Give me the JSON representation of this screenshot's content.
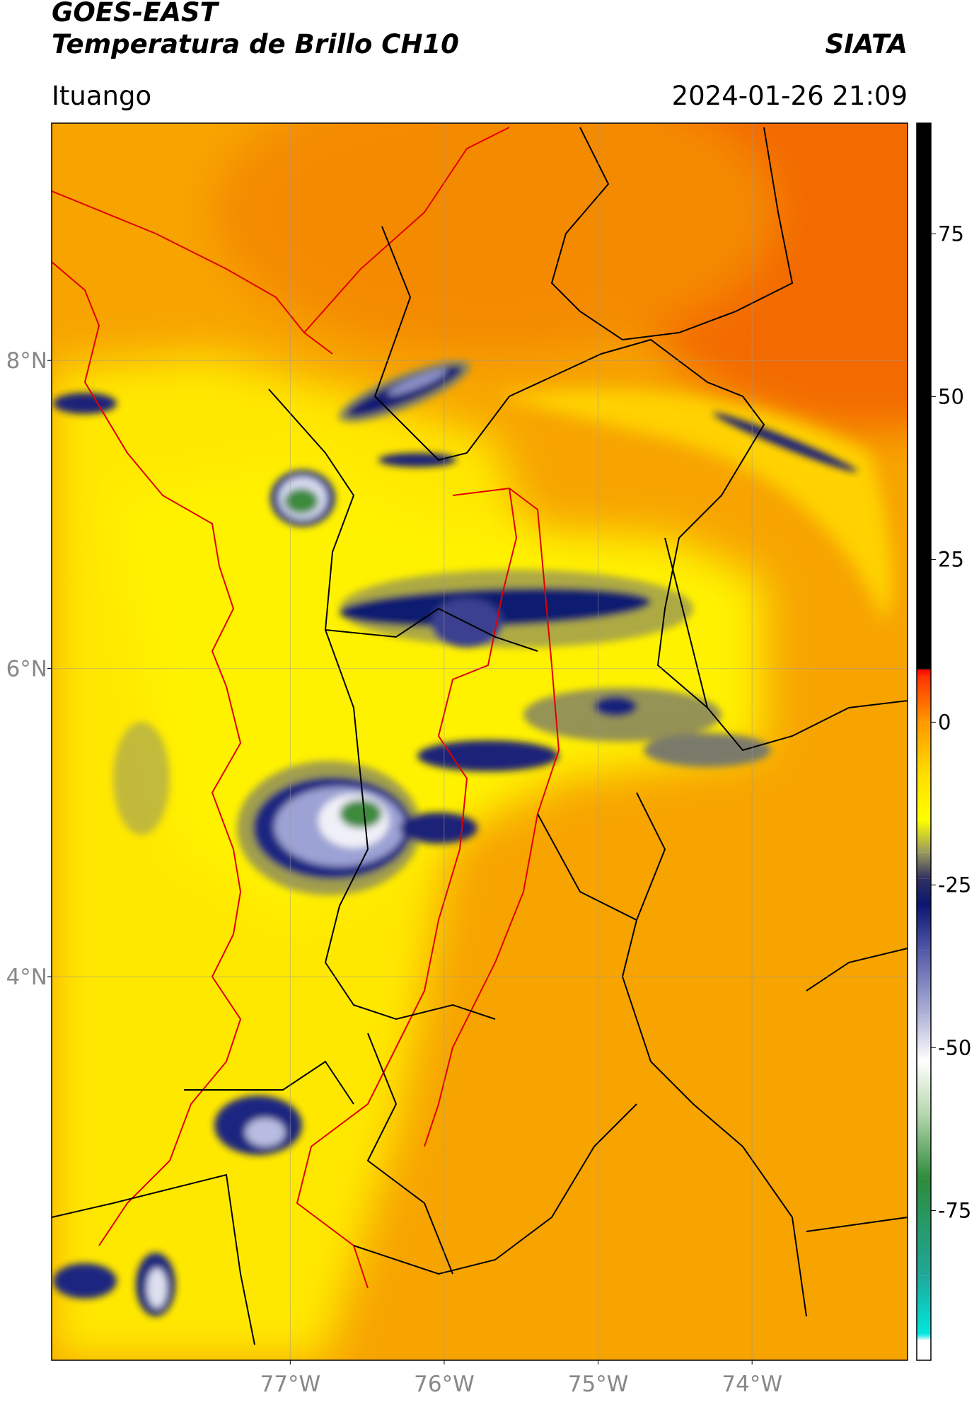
{
  "header": {
    "title": "GOES-EAST",
    "subtitle": "Temperatura de Brillo CH10",
    "credit": "SIATA",
    "region": "Ituango",
    "timestamp": "2024-01-26 21:09"
  },
  "map": {
    "lonlim": [
      -78.55,
      -72.99
    ],
    "latlim": [
      1.51,
      9.54
    ],
    "grid": true,
    "lonticks": [
      {
        "value": -77,
        "label": "77°W"
      },
      {
        "value": -76,
        "label": "76°W"
      },
      {
        "value": -75,
        "label": "75°W"
      },
      {
        "value": -74,
        "label": "74°W"
      }
    ],
    "latticks": [
      {
        "value": 8,
        "label": "8°N"
      },
      {
        "value": 6,
        "label": "6°N"
      },
      {
        "value": 4,
        "label": "4°N"
      }
    ]
  },
  "colorbar": {
    "lim": [
      -98,
      92
    ],
    "ticks": [
      75,
      50,
      25,
      0,
      -25,
      -50,
      -75
    ],
    "colormap": [
      [
        -98,
        "#ffffff"
      ],
      [
        -95,
        "#ffffff"
      ],
      [
        -94,
        "#00e8e0"
      ],
      [
        -85,
        "#1fa89a"
      ],
      [
        -70,
        "#2e8b3a"
      ],
      [
        -60,
        "#b8d8b0"
      ],
      [
        -52,
        "#ffffff"
      ],
      [
        -45,
        "#b0b4d8"
      ],
      [
        -35,
        "#5258a8"
      ],
      [
        -28,
        "#0a1670"
      ],
      [
        -24,
        "#303060"
      ],
      [
        -20,
        "#9a9a60"
      ],
      [
        -15,
        "#ffff00"
      ],
      [
        -8,
        "#ffdd00"
      ],
      [
        0,
        "#ff9900"
      ],
      [
        7,
        "#ff3300"
      ],
      [
        8,
        "#ff0000"
      ],
      [
        8.2,
        "#000000"
      ],
      [
        92,
        "#000000"
      ]
    ]
  }
}
